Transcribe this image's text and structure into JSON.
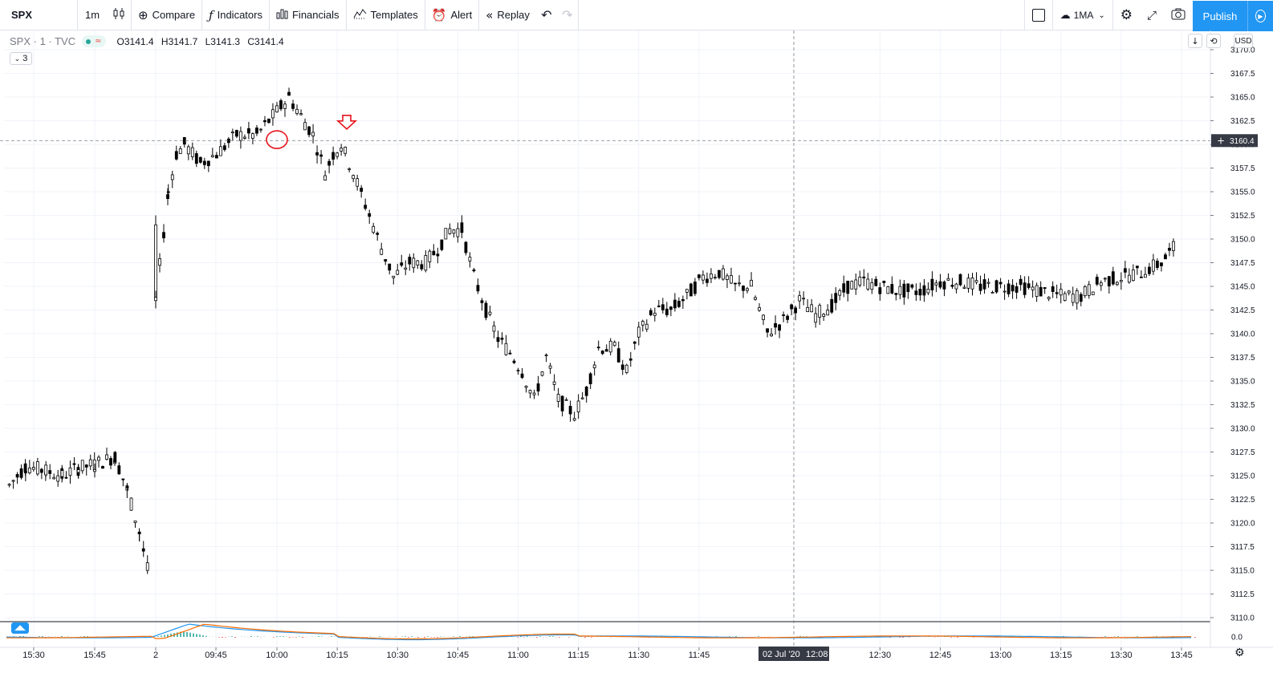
{
  "toolbar": {
    "symbol": "SPX",
    "interval": "1m",
    "compare_label": "Compare",
    "indicators_label": "Indicators",
    "financials_label": "Financials",
    "templates_label": "Templates",
    "alert_label": "Alert",
    "replay_label": "Replay",
    "layout_label": "1MA",
    "publish_label": "Publish"
  },
  "legend": {
    "symbol_line": "SPX · 1 · TVC",
    "open": "O3141.4",
    "high": "H3141.7",
    "low": "L3141.3",
    "close": "C3141.4",
    "collapse_count": "3"
  },
  "price_axis": {
    "currency": "USD",
    "crosshair_price": "3160.4"
  },
  "time_axis": {
    "crosshair_date": "02 Jul '20",
    "crosshair_time": "12:08"
  },
  "indicator_pane": {
    "zero_label": "0.0"
  },
  "colors": {
    "candle": "#000000",
    "grid": "#f0f3fa",
    "annotation": "#e8131c",
    "macd_line": "#2196f3",
    "signal_line": "#ff6d00",
    "hist_pos": "#26a69a",
    "hist_neg": "#ef5350",
    "accent": "#2196f3"
  },
  "chart_data": {
    "type": "candlestick",
    "symbol": "SPX",
    "interval_minutes": 1,
    "ylim": [
      3108.5,
      3171.0
    ],
    "y_ticks": [
      3110.0,
      3112.5,
      3115.0,
      3117.5,
      3120.0,
      3122.5,
      3125.0,
      3127.5,
      3130.0,
      3132.5,
      3135.0,
      3137.5,
      3140.0,
      3142.5,
      3145.0,
      3147.5,
      3150.0,
      3152.5,
      3155.0,
      3157.5,
      3160.0,
      3162.5,
      3165.0,
      3167.5,
      3170.0
    ],
    "x_ticks": [
      "15:30",
      "15:45",
      "2",
      "09:45",
      "10:00",
      "10:15",
      "10:30",
      "10:45",
      "11:00",
      "11:15",
      "11:30",
      "11:45",
      "12:30",
      "12:45",
      "13:00",
      "13:15",
      "13:30",
      "13:45"
    ],
    "crosshair_price": 3160.4,
    "crosshair_time": "12:08",
    "price_path": [
      [
        "15:24",
        3124.0
      ],
      [
        "15:28",
        3126.0
      ],
      [
        "15:33",
        3125.5
      ],
      [
        "15:37",
        3125.0
      ],
      [
        "15:41",
        3125.8
      ],
      [
        "15:45",
        3126.2
      ],
      [
        "15:50",
        3127.0
      ],
      [
        "15:53",
        3123.5
      ],
      [
        "15:56",
        3119.0
      ],
      [
        "15:58",
        3115.0
      ],
      [
        "09:31",
        3143.5
      ],
      [
        "09:33",
        3155.0
      ],
      [
        "09:35",
        3159.0
      ],
      [
        "09:37",
        3160.0
      ],
      [
        "09:41",
        3158.0
      ],
      [
        "09:45",
        3159.0
      ],
      [
        "09:50",
        3161.0
      ],
      [
        "09:55",
        3161.0
      ],
      [
        "10:00",
        3163.5
      ],
      [
        "10:03",
        3165.0
      ],
      [
        "10:06",
        3163.0
      ],
      [
        "10:09",
        3161.0
      ],
      [
        "10:12",
        3157.0
      ],
      [
        "10:14",
        3159.0
      ],
      [
        "10:16",
        3160.0
      ],
      [
        "10:19",
        3157.0
      ],
      [
        "10:23",
        3152.5
      ],
      [
        "10:26",
        3149.0
      ],
      [
        "10:29",
        3146.0
      ],
      [
        "10:33",
        3147.5
      ],
      [
        "10:37",
        3147.5
      ],
      [
        "10:40",
        3149.0
      ],
      [
        "10:43",
        3151.0
      ],
      [
        "10:46",
        3151.0
      ],
      [
        "10:49",
        3146.0
      ],
      [
        "10:52",
        3142.5
      ],
      [
        "10:55",
        3139.5
      ],
      [
        "10:58",
        3138.0
      ],
      [
        "11:01",
        3136.0
      ],
      [
        "11:04",
        3133.0
      ],
      [
        "11:07",
        3137.5
      ],
      [
        "11:10",
        3133.0
      ],
      [
        "11:14",
        3131.5
      ],
      [
        "11:17",
        3134.0
      ],
      [
        "11:20",
        3138.5
      ],
      [
        "11:24",
        3138.5
      ],
      [
        "11:27",
        3136.0
      ],
      [
        "11:30",
        3140.0
      ],
      [
        "11:34",
        3142.5
      ],
      [
        "11:38",
        3142.5
      ],
      [
        "11:42",
        3144.0
      ],
      [
        "11:46",
        3146.0
      ],
      [
        "11:50",
        3146.5
      ],
      [
        "11:54",
        3145.0
      ],
      [
        "11:58",
        3145.0
      ],
      [
        "12:02",
        3140.0
      ],
      [
        "12:06",
        3141.4
      ],
      [
        "12:10",
        3143.5
      ],
      [
        "12:14",
        3142.0
      ],
      [
        "12:18",
        3143.0
      ],
      [
        "12:22",
        3145.0
      ],
      [
        "12:26",
        3145.5
      ],
      [
        "12:30",
        3145.0
      ],
      [
        "12:35",
        3144.5
      ],
      [
        "12:40",
        3144.5
      ],
      [
        "12:45",
        3145.5
      ],
      [
        "12:50",
        3145.5
      ],
      [
        "12:55",
        3145.0
      ],
      [
        "13:00",
        3145.0
      ],
      [
        "13:05",
        3145.0
      ],
      [
        "13:10",
        3144.5
      ],
      [
        "13:15",
        3144.0
      ],
      [
        "13:20",
        3144.0
      ],
      [
        "13:25",
        3145.5
      ],
      [
        "13:30",
        3146.0
      ],
      [
        "13:35",
        3146.5
      ],
      [
        "13:40",
        3147.5
      ],
      [
        "13:44",
        3149.5
      ]
    ],
    "annotations": [
      {
        "type": "circle",
        "time": "10:00",
        "price": 3160.5
      },
      {
        "type": "down-arrow",
        "time": "10:15",
        "price": 3162.3
      }
    ]
  }
}
